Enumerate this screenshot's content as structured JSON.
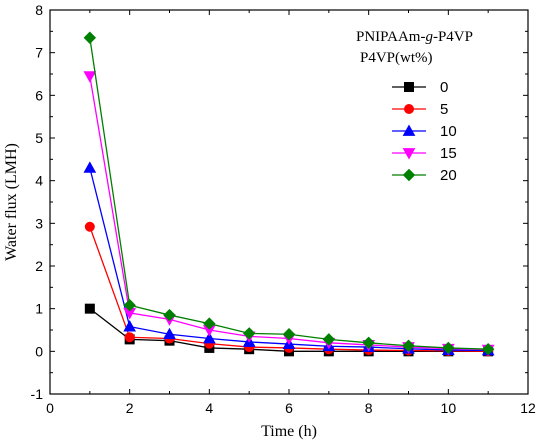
{
  "chart_data": {
    "type": "line",
    "xlabel": "Time (h)",
    "ylabel": "Water flux (LMH)",
    "xlim": [
      0,
      12
    ],
    "ylim": [
      -1,
      8
    ],
    "xticks": [
      0,
      2,
      4,
      6,
      8,
      10,
      12
    ],
    "yticks": [
      -1,
      0,
      1,
      2,
      3,
      4,
      5,
      6,
      7,
      8
    ],
    "legend_title": [
      "PNIPAAm-g-P4VP",
      "P4VP(wt%)"
    ],
    "legend_title_parts": {
      "prefix": "PNIPAAm-",
      "italic": "g",
      "suffix": "-P4VP"
    },
    "legend_position": "top-right",
    "grid": false,
    "x": [
      1,
      2,
      3,
      4,
      5,
      6,
      7,
      8,
      9,
      10,
      11
    ],
    "series": [
      {
        "name": "0",
        "color": "#000000",
        "marker": "square",
        "values": [
          1.0,
          0.28,
          0.25,
          0.08,
          0.05,
          0.0,
          0.0,
          0.0,
          0.0,
          0.0,
          0.0
        ]
      },
      {
        "name": "5",
        "color": "#ff0000",
        "marker": "circle",
        "values": [
          2.92,
          0.33,
          0.3,
          0.18,
          0.1,
          0.08,
          0.05,
          0.03,
          0.02,
          0.01,
          0.0
        ]
      },
      {
        "name": "10",
        "color": "#0000ff",
        "marker": "triangle-up",
        "values": [
          4.3,
          0.58,
          0.4,
          0.3,
          0.22,
          0.17,
          0.12,
          0.1,
          0.06,
          0.03,
          0.02
        ]
      },
      {
        "name": "15",
        "color": "#ff00ff",
        "marker": "triangle-down",
        "values": [
          6.45,
          0.9,
          0.75,
          0.5,
          0.35,
          0.3,
          0.2,
          0.15,
          0.1,
          0.06,
          0.04
        ]
      },
      {
        "name": "20",
        "color": "#008000",
        "marker": "diamond",
        "values": [
          7.35,
          1.08,
          0.85,
          0.65,
          0.42,
          0.4,
          0.28,
          0.2,
          0.13,
          0.08,
          0.05
        ]
      }
    ]
  }
}
